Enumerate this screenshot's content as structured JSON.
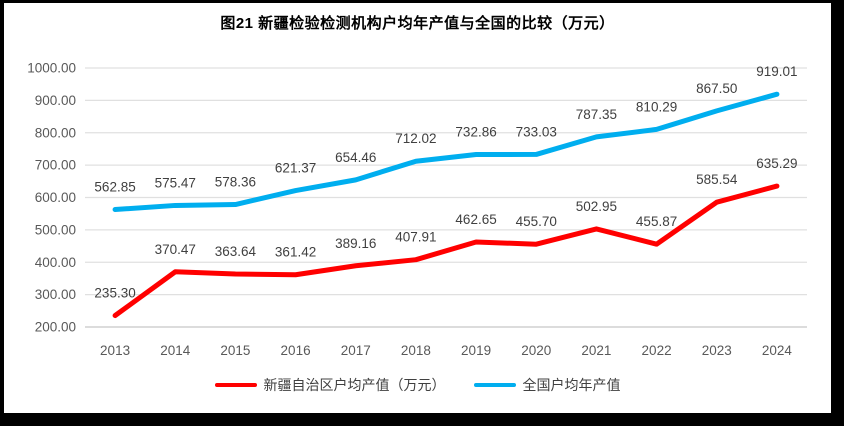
{
  "chart_data": {
    "type": "line",
    "title": "图21 新疆检验检测机构户均年产值与全国的比较（万元）",
    "categories": [
      "2013",
      "2014",
      "2015",
      "2016",
      "2017",
      "2018",
      "2019",
      "2020",
      "2021",
      "2022",
      "2023",
      "2024"
    ],
    "series": [
      {
        "name": "全国户均年产值",
        "color": "#00AEEF",
        "values": [
          562.85,
          575.47,
          578.36,
          621.37,
          654.46,
          712.02,
          732.86,
          733.03,
          787.35,
          810.29,
          867.5,
          919.01
        ]
      },
      {
        "name": "新疆自治区户均产值（万元）",
        "color": "#FF0000",
        "values": [
          235.3,
          370.47,
          363.64,
          361.42,
          389.16,
          407.91,
          462.65,
          455.7,
          502.95,
          455.87,
          585.54,
          635.29
        ]
      }
    ],
    "ylim": [
      200,
      1000
    ],
    "y_tick_step": 100,
    "y_tick_labels": [
      "1000.00",
      "900.00",
      "800.00",
      "700.00",
      "600.00",
      "500.00",
      "400.00",
      "300.00",
      "200.00"
    ],
    "grid": true,
    "data_labels": true,
    "legend_position": "bottom",
    "legend_order": [
      "新疆自治区户均产值（万元）",
      "全国户均年产值"
    ]
  },
  "styles": {
    "frame_border_color": "#000000",
    "background_color": "#ffffff",
    "gridline_color": "#E0E0E0",
    "axis_line_color": "#C6C6C6",
    "tick_label_color": "#595959",
    "data_label_color": "#404040",
    "legend_text_color": "#404040"
  }
}
